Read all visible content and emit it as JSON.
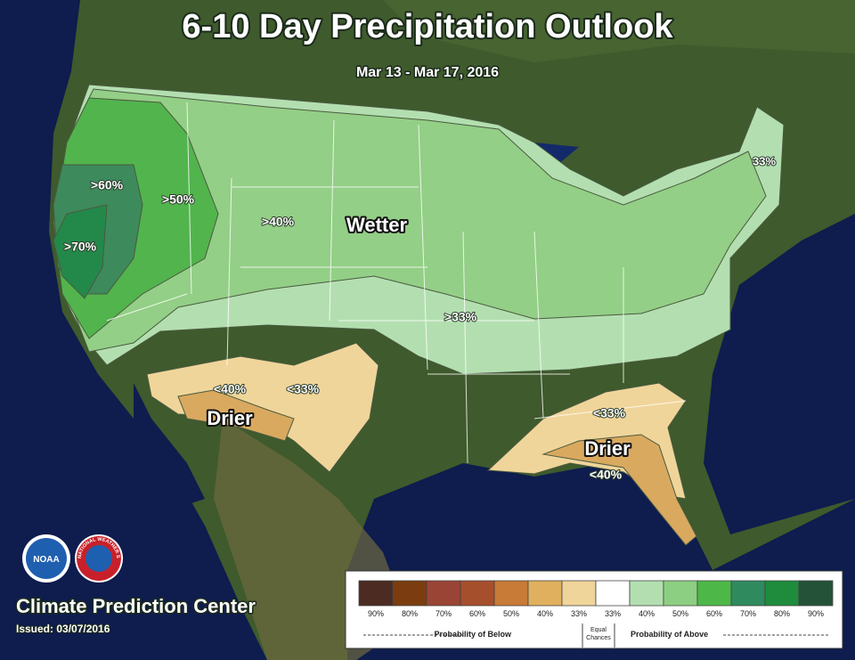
{
  "header": {
    "title": "6-10 Day Precipitation Outlook",
    "subtitle": "Mar 13 - Mar 17, 2016"
  },
  "map_labels": [
    ">60%",
    ">50%",
    ">70%",
    ">40%",
    "Wetter",
    "33%",
    ">33%",
    "<40%",
    "<33%",
    "Drier",
    "<33%",
    "Drier",
    "<40%"
  ],
  "logos": {
    "noaa": "NOAA",
    "nws": "NATIONAL WEATHER SERVICE"
  },
  "footer": {
    "center": "Climate Prediction Center",
    "issued": "Issued: 03/07/2016"
  },
  "legend": {
    "swatches": [
      {
        "label": "90%",
        "color": "#4b2b22"
      },
      {
        "label": "80%",
        "color": "#7b3d0f"
      },
      {
        "label": "70%",
        "color": "#9a4436"
      },
      {
        "label": "60%",
        "color": "#a64f2d"
      },
      {
        "label": "50%",
        "color": "#c87a37"
      },
      {
        "label": "40%",
        "color": "#e0b05e"
      },
      {
        "label": "33%",
        "color": "#f0d59a"
      },
      {
        "label": "33%",
        "color": "#ffffff"
      },
      {
        "label": "40%",
        "color": "#b3dfb0"
      },
      {
        "label": "50%",
        "color": "#8ccf82"
      },
      {
        "label": "60%",
        "color": "#4db848"
      },
      {
        "label": "70%",
        "color": "#2f8a5e"
      },
      {
        "label": "80%",
        "color": "#1e8c3c"
      },
      {
        "label": "90%",
        "color": "#245239"
      }
    ],
    "below": "Probability of Below",
    "equal": "Equal Chances",
    "above": "Probability of Above"
  }
}
